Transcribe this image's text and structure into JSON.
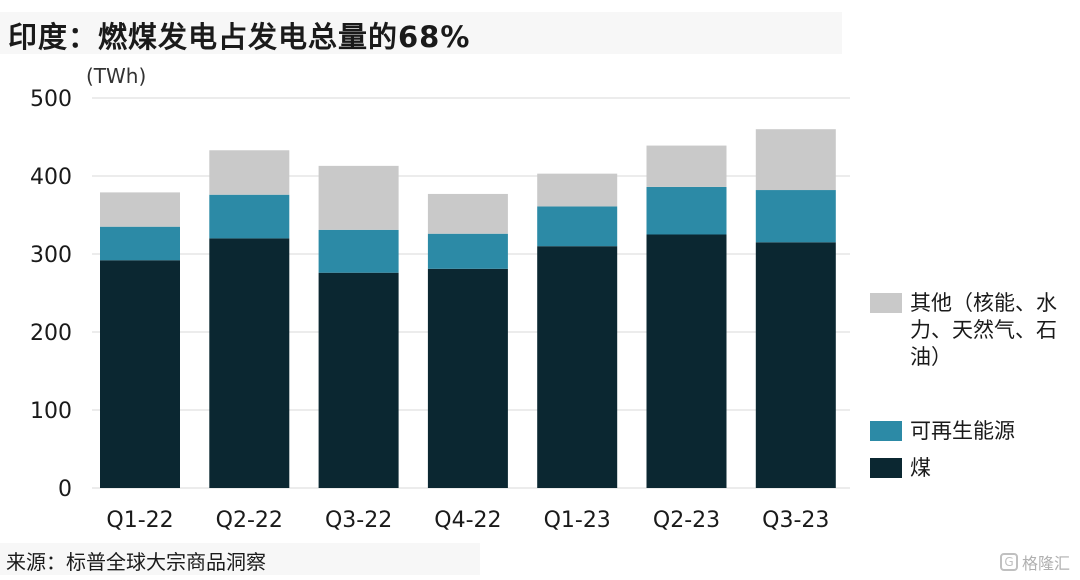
{
  "title": "印度：燃煤发电占发电总量的68%",
  "unit_label": "(TWh)",
  "source": "来源：标普全球大宗商品洞察",
  "watermark": "格隆汇",
  "colors": {
    "coal": "#0b2731",
    "renewable": "#2c8aa6",
    "other": "#c9c9c9",
    "grid": "#d9d9d9"
  },
  "chart_data": {
    "type": "bar",
    "stacked": true,
    "title": "印度：燃煤发电占发电总量的68%",
    "ylabel": "(TWh)",
    "ylim": [
      0,
      500
    ],
    "yticks": [
      0,
      100,
      200,
      300,
      400,
      500
    ],
    "grid": true,
    "legend_position": "right",
    "categories": [
      "Q1-22",
      "Q2-22",
      "Q3-22",
      "Q4-22",
      "Q1-23",
      "Q2-23",
      "Q3-23"
    ],
    "series": [
      {
        "name": "煤",
        "color": "#0b2731",
        "values": [
          292,
          320,
          276,
          281,
          310,
          325,
          315
        ]
      },
      {
        "name": "可再生能源",
        "color": "#2c8aa6",
        "values": [
          43,
          56,
          55,
          45,
          51,
          61,
          67
        ]
      },
      {
        "name": "其他（核能、水力、天然气、石油）",
        "color": "#c9c9c9",
        "values": [
          44,
          57,
          82,
          51,
          42,
          53,
          78
        ]
      }
    ]
  }
}
